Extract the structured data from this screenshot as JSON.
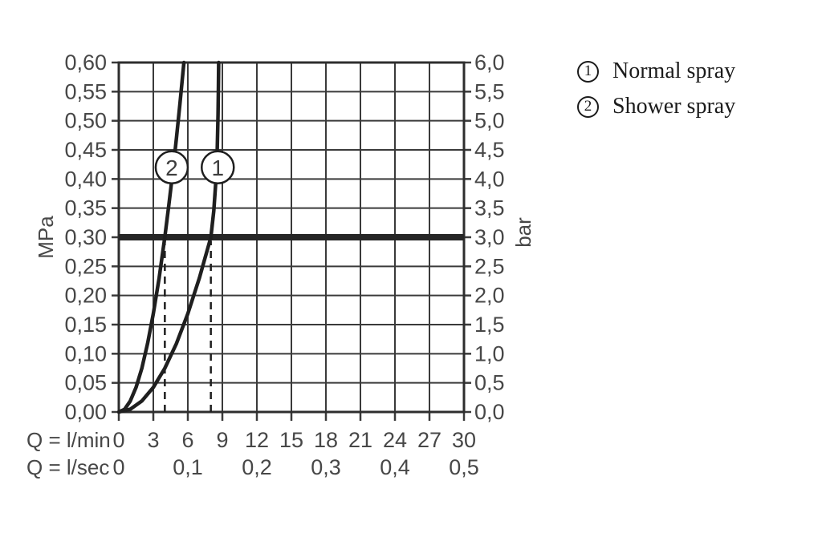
{
  "chart_data": {
    "type": "line",
    "description": "Shower flow-rate diagram: pressure (MPa / bar) vs flow rate Q (l/min, l/sec)",
    "x_axis": {
      "label_lmin": "Q = l/min",
      "label_lsec": "Q = l/sec",
      "range_lmin": [
        0,
        30
      ],
      "ticks_lmin": [
        "0",
        "3",
        "6",
        "9",
        "12",
        "15",
        "18",
        "21",
        "24",
        "27",
        "30"
      ],
      "ticks_lmin_values": [
        0,
        3,
        6,
        9,
        12,
        15,
        18,
        21,
        24,
        27,
        30
      ],
      "ticks_lsec": [
        "0",
        "0,1",
        "0,2",
        "0,3",
        "0,4",
        "0,5"
      ],
      "ticks_lsec_positions_lmin": [
        0,
        6,
        12,
        18,
        24,
        30
      ]
    },
    "y_axis_left": {
      "label": "MPa",
      "range": [
        0,
        0.6
      ],
      "ticks": [
        "0,60",
        "0,55",
        "0,50",
        "0,45",
        "0,40",
        "0,35",
        "0,30",
        "0,25",
        "0,20",
        "0,15",
        "0,10",
        "0,05",
        "0,00"
      ]
    },
    "y_axis_right": {
      "label": "bar",
      "range": [
        0,
        6
      ],
      "ticks": [
        "6,0",
        "5,5",
        "5,0",
        "4,5",
        "4,0",
        "3,5",
        "3,0",
        "2,5",
        "2,0",
        "1,5",
        "1,0",
        "0,5",
        "0,0"
      ]
    },
    "reference_line": {
      "mpa": 0.3,
      "bar": 3.0
    },
    "dashed_guides_lmin": [
      4,
      8
    ],
    "series": [
      {
        "id": "1",
        "name": "Normal spray",
        "flow_at_3bar_lmin": 8,
        "points": [
          [
            0,
            0
          ],
          [
            1,
            0.0047
          ],
          [
            2,
            0.0188
          ],
          [
            3,
            0.0422
          ],
          [
            4,
            0.075
          ],
          [
            5,
            0.1172
          ],
          [
            6,
            0.1688
          ],
          [
            7,
            0.2297
          ],
          [
            8,
            0.3
          ],
          [
            8.25,
            0.345
          ],
          [
            8.45,
            0.4
          ],
          [
            8.55,
            0.45
          ],
          [
            8.62,
            0.51
          ],
          [
            8.66,
            0.56
          ],
          [
            8.68,
            0.6
          ]
        ],
        "marker": {
          "label": "1",
          "q": 8.6,
          "p": 0.42
        }
      },
      {
        "id": "2",
        "name": "Shower spray",
        "flow_at_3bar_lmin": 4,
        "points": [
          [
            0,
            0
          ],
          [
            0.5,
            0.0047
          ],
          [
            1,
            0.0188
          ],
          [
            1.5,
            0.0422
          ],
          [
            2,
            0.075
          ],
          [
            2.5,
            0.1172
          ],
          [
            3,
            0.1688
          ],
          [
            3.5,
            0.2297
          ],
          [
            4,
            0.3
          ],
          [
            4.35,
            0.355
          ],
          [
            4.7,
            0.414
          ],
          [
            5.0,
            0.469
          ],
          [
            5.3,
            0.527
          ],
          [
            5.66,
            0.6
          ]
        ],
        "marker": {
          "label": "2",
          "q": 4.6,
          "p": 0.42
        }
      }
    ],
    "legend": [
      {
        "symbol": "1",
        "label": "Normal spray"
      },
      {
        "symbol": "2",
        "label": "Shower spray"
      }
    ]
  },
  "colors": {
    "background": "#ffffff",
    "grid": "#3a3a3a",
    "frame": "#2e2e2e",
    "curve": "#1f1f1f",
    "reference": "#262626",
    "tick_text": "#474747",
    "legend_text": "#1b1b1b"
  }
}
